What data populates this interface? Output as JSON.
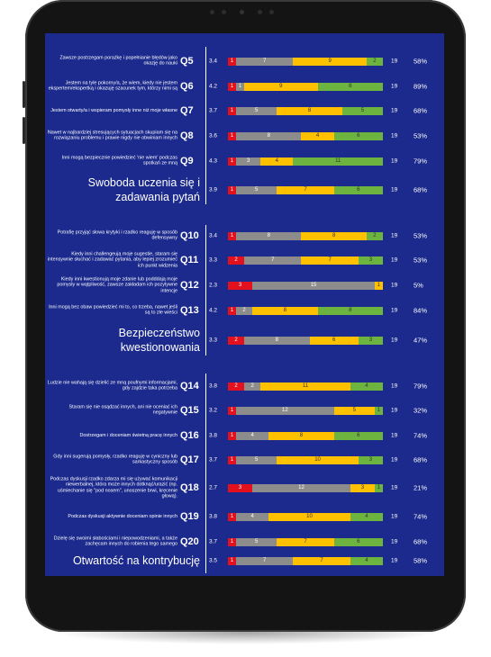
{
  "sections": [
    {
      "rows": [
        {
          "text": "Zawsze postrzegam porażkę i popełnianie błędów jako okazję do nauki",
          "q": "Q5",
          "mean": 3.4,
          "segments": [
            {
              "value": 1,
              "color": "#e3101e"
            },
            {
              "value": 7,
              "color": "#8c8c8c"
            },
            {
              "value": 9,
              "color": "#ffc000"
            },
            {
              "value": 2,
              "color": "#6cb33f"
            }
          ],
          "n": 19,
          "percent": "58%"
        },
        {
          "text": "Jestem na tyle pokorny/a, że wiem, kiedy nie jestem ekspertem/ekspertką i okazuję szacunek tym, którzy nimi są",
          "q": "Q6",
          "mean": 4.2,
          "segments": [
            {
              "value": 1,
              "color": "#e3101e"
            },
            {
              "value": 1,
              "color": "#8c8c8c"
            },
            {
              "value": 9,
              "color": "#ffc000"
            },
            {
              "value": 8,
              "color": "#6cb33f"
            }
          ],
          "n": 19,
          "percent": "89%"
        },
        {
          "text": "Jestem otwarty/a i wspieram pomysły inne niż moje własne",
          "q": "Q7",
          "mean": 3.7,
          "segments": [
            {
              "value": 1,
              "color": "#e3101e"
            },
            {
              "value": 5,
              "color": "#8c8c8c"
            },
            {
              "value": 8,
              "color": "#ffc000"
            },
            {
              "value": 5,
              "color": "#6cb33f"
            }
          ],
          "n": 19,
          "percent": "68%"
        },
        {
          "text": "Nawet w najbardziej stresujących sytuacjach skupiam się na rozwiązaniu problemu i prawie nigdy nie obwiniam innych",
          "q": "Q8",
          "mean": 3.6,
          "segments": [
            {
              "value": 1,
              "color": "#e3101e"
            },
            {
              "value": 8,
              "color": "#8c8c8c"
            },
            {
              "value": 4,
              "color": "#ffc000"
            },
            {
              "value": 6,
              "color": "#6cb33f"
            }
          ],
          "n": 19,
          "percent": "53%"
        },
        {
          "text": "Inni mogą bezpiecznie powiedzieć 'nie wiem' podczas spotkań ze mną",
          "q": "Q9",
          "mean": 4.3,
          "segments": [
            {
              "value": 1,
              "color": "#e3101e"
            },
            {
              "value": 3,
              "color": "#8c8c8c"
            },
            {
              "value": 4,
              "color": "#ffc000"
            },
            {
              "value": 11,
              "color": "#6cb33f"
            }
          ],
          "n": 19,
          "percent": "79%"
        }
      ],
      "summary": {
        "title": "Swoboda uczenia się i zadawania pytań",
        "mean": 3.9,
        "segments": [
          {
            "value": 1,
            "color": "#e3101e"
          },
          {
            "value": 5,
            "color": "#8c8c8c"
          },
          {
            "value": 7,
            "color": "#ffc000"
          },
          {
            "value": 6,
            "color": "#6cb33f"
          }
        ],
        "n": 19,
        "percent": "68%"
      }
    },
    {
      "rows": [
        {
          "text": "Potrafię przyjąć słowa krytyki i rzadko reaguję w sposób defensywny",
          "q": "Q10",
          "mean": 3.4,
          "segments": [
            {
              "value": 1,
              "color": "#e3101e"
            },
            {
              "value": 8,
              "color": "#8c8c8c"
            },
            {
              "value": 8,
              "color": "#ffc000"
            },
            {
              "value": 2,
              "color": "#6cb33f"
            }
          ],
          "n": 19,
          "percent": "53%"
        },
        {
          "text": "Kiedy inni challengeują moje sugestie, staram się intensywnie słuchać i zadawać pytania, aby lepiej zrozumieć ich punkt widzenia",
          "q": "Q11",
          "mean": 3.3,
          "segments": [
            {
              "value": 2,
              "color": "#e3101e"
            },
            {
              "value": 7,
              "color": "#8c8c8c"
            },
            {
              "value": 7,
              "color": "#ffc000"
            },
            {
              "value": 3,
              "color": "#6cb33f"
            }
          ],
          "n": 19,
          "percent": "53%"
        },
        {
          "text": "Kiedy inni kwestionują moje zdanie lub podddają moje pomysły w wątpliwość, zawsze zakładam ich pozytywne intencje",
          "q": "Q12",
          "mean": 2.3,
          "segments": [
            {
              "value": 3,
              "color": "#e3101e"
            },
            {
              "value": 15,
              "color": "#8c8c8c"
            },
            {
              "value": 1,
              "color": "#ffc000"
            }
          ],
          "n": 19,
          "percent": "5%"
        },
        {
          "text": "Inni mogą bez obaw powiedzieć mi to, co trzeba, nawet jeśli są to złe wieści",
          "q": "Q13",
          "mean": 4.2,
          "segments": [
            {
              "value": 1,
              "color": "#e3101e"
            },
            {
              "value": 2,
              "color": "#8c8c8c"
            },
            {
              "value": 8,
              "color": "#ffc000"
            },
            {
              "value": 8,
              "color": "#6cb33f"
            }
          ],
          "n": 19,
          "percent": "84%"
        }
      ],
      "summary": {
        "title": "Bezpieczeństwo kwestionowania",
        "mean": 3.3,
        "segments": [
          {
            "value": 2,
            "color": "#e3101e"
          },
          {
            "value": 8,
            "color": "#8c8c8c"
          },
          {
            "value": 6,
            "color": "#ffc000"
          },
          {
            "value": 3,
            "color": "#6cb33f"
          }
        ],
        "n": 19,
        "percent": "47%"
      }
    },
    {
      "rows": [
        {
          "text": "Ludzie nie wahają się dzielić ze mną poufnymi informacjami, gdy zajdzie taka potrzeba",
          "q": "Q14",
          "mean": 3.8,
          "segments": [
            {
              "value": 2,
              "color": "#e3101e"
            },
            {
              "value": 2,
              "color": "#8c8c8c"
            },
            {
              "value": 11,
              "color": "#ffc000"
            },
            {
              "value": 4,
              "color": "#6cb33f"
            }
          ],
          "n": 19,
          "percent": "79%"
        },
        {
          "text": "Staram się nie osądzać innych, ani nie oceniać ich negatywnie",
          "q": "Q15",
          "mean": 3.2,
          "segments": [
            {
              "value": 1,
              "color": "#e3101e"
            },
            {
              "value": 12,
              "color": "#8c8c8c"
            },
            {
              "value": 5,
              "color": "#ffc000"
            },
            {
              "value": 1,
              "color": "#6cb33f"
            }
          ],
          "n": 19,
          "percent": "32%"
        },
        {
          "text": "Dostrzegam i doceniam świetną pracę innych",
          "q": "Q16",
          "mean": 3.8,
          "segments": [
            {
              "value": 1,
              "color": "#e3101e"
            },
            {
              "value": 4,
              "color": "#8c8c8c"
            },
            {
              "value": 8,
              "color": "#ffc000"
            },
            {
              "value": 6,
              "color": "#6cb33f"
            }
          ],
          "n": 19,
          "percent": "74%"
        },
        {
          "text": "Gdy inni sugerują pomysły, rzadko reaguję w cyniczny lub sarkastyczny sposób",
          "q": "Q17",
          "mean": 3.7,
          "segments": [
            {
              "value": 1,
              "color": "#e3101e"
            },
            {
              "value": 5,
              "color": "#8c8c8c"
            },
            {
              "value": 10,
              "color": "#ffc000"
            },
            {
              "value": 3,
              "color": "#6cb33f"
            }
          ],
          "n": 19,
          "percent": "68%"
        },
        {
          "text": "Podczas dyskusji rzadko zdarza mi się używać komunikacji niewerbalnej, która może innych dotknąć/urazić (np. uśmiechanie się \"pod nosem\", unoszenie brwi, kręcenie głową).",
          "q": "Q18",
          "mean": 2.7,
          "segments": [
            {
              "value": 3,
              "color": "#e3101e"
            },
            {
              "value": 12,
              "color": "#8c8c8c"
            },
            {
              "value": 3,
              "color": "#ffc000"
            },
            {
              "value": 1,
              "color": "#6cb33f"
            }
          ],
          "n": 19,
          "percent": "21%"
        },
        {
          "text": "Podczas dyskusji aktywnie doceniam opinie innych",
          "q": "Q19",
          "mean": 3.8,
          "segments": [
            {
              "value": 1,
              "color": "#e3101e"
            },
            {
              "value": 4,
              "color": "#8c8c8c"
            },
            {
              "value": 10,
              "color": "#ffc000"
            },
            {
              "value": 4,
              "color": "#6cb33f"
            }
          ],
          "n": 19,
          "percent": "74%"
        },
        {
          "text": "Dzielę się swoimi słabościami i niepowodzeniami, a także zachęcam innych do robienia tego samego",
          "q": "Q20",
          "mean": 3.7,
          "segments": [
            {
              "value": 1,
              "color": "#e3101e"
            },
            {
              "value": 5,
              "color": "#8c8c8c"
            },
            {
              "value": 7,
              "color": "#ffc000"
            },
            {
              "value": 6,
              "color": "#6cb33f"
            }
          ],
          "n": 19,
          "percent": "68%"
        }
      ],
      "summary": {
        "title": "Otwartość na kontrybucję",
        "mean": 3.5,
        "segments": [
          {
            "value": 1,
            "color": "#e3101e"
          },
          {
            "value": 7,
            "color": "#8c8c8c"
          },
          {
            "value": 7,
            "color": "#ffc000"
          },
          {
            "value": 4,
            "color": "#6cb33f"
          }
        ],
        "n": 19,
        "percent": "58%"
      }
    }
  ]
}
